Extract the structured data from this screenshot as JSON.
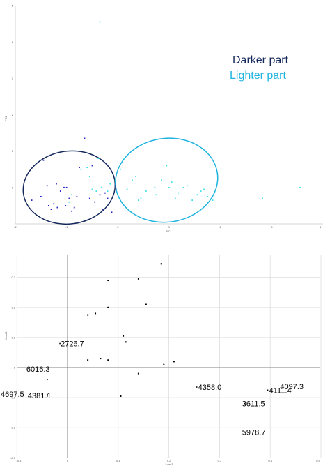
{
  "legend": {
    "items": [
      {
        "label": "Darker part",
        "color": "#14285c"
      },
      {
        "label": "Lighter part",
        "color": "#1fb3e0"
      }
    ]
  },
  "chart_data": [
    {
      "type": "scatter",
      "title": "",
      "xlabel": "PC1",
      "ylabel": "PC2",
      "xlim": [
        -2,
        4
      ],
      "ylim": [
        -1,
        5
      ],
      "xticks": [
        "-2",
        "-1",
        "0",
        "1",
        "2",
        "3",
        "4"
      ],
      "yticks": [
        "0",
        "1",
        "2",
        "3",
        "4",
        "5"
      ],
      "grid": false,
      "series": [
        {
          "name": "Darker part",
          "color": "#2424c8",
          "x": [
            -1.68,
            -1.5,
            -1.38,
            -1.35,
            -1.3,
            -1.25,
            -1.2,
            -1.18,
            -1.12,
            -1.05,
            -1.02,
            -1.0,
            -0.95,
            -0.9,
            -0.85,
            -0.8,
            -0.65,
            -0.55,
            -0.5,
            -0.45,
            -0.35,
            -0.3,
            -0.25,
            -0.2,
            -0.12,
            -0.05,
            -1.45,
            -0.75
          ],
          "y": [
            -0.35,
            -0.25,
            0.05,
            -0.5,
            -0.6,
            -0.45,
            0.1,
            -0.55,
            -0.1,
            0.0,
            -0.5,
            0.0,
            -0.3,
            -0.65,
            -0.55,
            -0.25,
            1.35,
            -0.3,
            0.6,
            -0.4,
            -0.2,
            -0.6,
            -0.15,
            -0.3,
            -0.68,
            0.05,
            0.75,
            0.55
          ]
        },
        {
          "name": "Lighter part",
          "color": "#3ee0e8",
          "x": [
            -0.95,
            -0.9,
            -0.72,
            -0.6,
            -0.55,
            -0.5,
            -0.42,
            -0.38,
            -0.32,
            -0.2,
            -0.15,
            -0.05,
            0.05,
            0.12,
            0.18,
            0.28,
            0.35,
            0.4,
            0.45,
            0.55,
            0.72,
            0.75,
            0.85,
            0.95,
            1.0,
            1.05,
            1.12,
            1.18,
            1.28,
            1.35,
            1.45,
            1.55,
            1.62,
            1.68,
            1.75,
            1.85,
            2.82,
            3.55,
            -0.35
          ],
          "y": [
            -0.4,
            -0.2,
            0.5,
            0.55,
            0.3,
            -0.05,
            -0.1,
            0.8,
            0.0,
            -0.1,
            0.1,
            0.2,
            0.5,
            0.8,
            -0.05,
            0.2,
            0.3,
            -0.35,
            -0.3,
            -0.1,
            0.0,
            -0.2,
            0.2,
            0.6,
            0.0,
            0.15,
            -0.3,
            -0.15,
            0.0,
            0.05,
            -0.35,
            -0.2,
            -0.1,
            -0.05,
            -0.25,
            -0.35,
            -0.3,
            0.0,
            4.55
          ]
        }
      ],
      "ellipses": [
        {
          "name": "Darker part",
          "color": "#14285c",
          "cx": -0.95,
          "cy": 0.0,
          "rx": 0.9,
          "ry": 1.0
        },
        {
          "name": "Lighter part",
          "color": "#1fb3e0",
          "cx": 0.95,
          "cy": 0.2,
          "rx": 1.0,
          "ry": 1.15
        }
      ]
    },
    {
      "type": "scatter",
      "title": "",
      "xlabel": "Load1",
      "ylabel": "Load2",
      "xlim": [
        -0.1,
        0.5
      ],
      "ylim": [
        -0.3,
        0.35
      ],
      "xticks": [
        "-0.1",
        "0",
        "0.1",
        "0.2",
        "0.3",
        "0.4",
        "0.5"
      ],
      "yticks": [
        "0.3",
        "0.2",
        "0.1",
        "0",
        "-0.1",
        "-0.2",
        "-0.3"
      ],
      "grid": true,
      "points": {
        "color": "#000000",
        "x": [
          0.185,
          0.04,
          0.055,
          0.08,
          0.08,
          0.14,
          0.155,
          0.11,
          0.115,
          0.04,
          0.065,
          0.08,
          0.21,
          0.19,
          0.14,
          0.105
        ],
        "y": [
          0.345,
          0.175,
          0.18,
          0.29,
          0.2,
          0.295,
          0.21,
          0.105,
          0.085,
          0.025,
          0.03,
          0.025,
          0.02,
          0.01,
          -0.02,
          -0.095
        ]
      },
      "labeled_points": [
        {
          "label": "2726.7",
          "x": -0.015,
          "y": 0.08
        },
        {
          "label": "6016.3",
          "x": -0.04,
          "y": -0.04
        },
        {
          "label": "4697.5",
          "x": -0.04,
          "y": -0.09
        },
        {
          "label": "4381.1",
          "x": -0.04,
          "y": -0.095
        },
        {
          "label": "4358.0",
          "x": 0.255,
          "y": -0.065
        },
        {
          "label": "4111.4",
          "x": 0.395,
          "y": -0.075
        },
        {
          "label": "4097.3",
          "x": 0.425,
          "y": -0.065
        },
        {
          "label": "3611.5",
          "x": 0.35,
          "y": -0.12
        },
        {
          "label": "5978.7",
          "x": 0.35,
          "y": -0.215
        }
      ]
    }
  ]
}
